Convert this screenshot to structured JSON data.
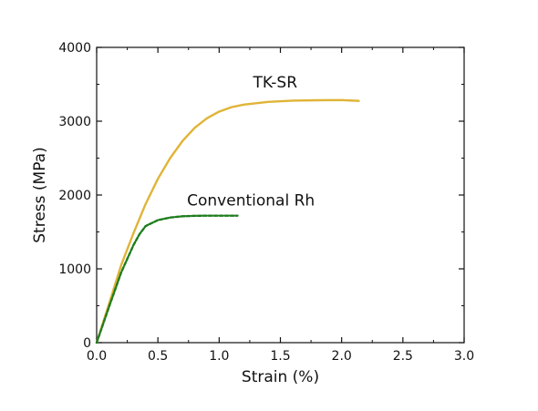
{
  "chart_data": {
    "type": "line",
    "xlabel": "Strain (%)",
    "ylabel": "Stress (MPa)",
    "xlim": [
      0,
      3.0
    ],
    "ylim": [
      0,
      4000
    ],
    "x_ticks": [
      0.0,
      0.5,
      1.0,
      1.5,
      2.0,
      2.5,
      3.0
    ],
    "x_tick_labels": [
      "0.0",
      "0.5",
      "1.0",
      "1.5",
      "2.0",
      "2.5",
      "3.0"
    ],
    "y_ticks": [
      0,
      1000,
      2000,
      3000,
      4000
    ],
    "y_tick_labels": [
      "0",
      "1000",
      "2000",
      "3000",
      "4000"
    ],
    "grid": false,
    "series": [
      {
        "name": "TK-SR",
        "color": "#e0b437",
        "style": "solid",
        "x": [
          0.0,
          0.1,
          0.2,
          0.3,
          0.4,
          0.5,
          0.6,
          0.7,
          0.8,
          0.9,
          1.0,
          1.1,
          1.2,
          1.4,
          1.6,
          1.8,
          2.0,
          2.14
        ],
        "y": [
          0,
          520,
          1050,
          1480,
          1880,
          2220,
          2500,
          2730,
          2910,
          3040,
          3130,
          3190,
          3225,
          3262,
          3278,
          3284,
          3286,
          3275
        ]
      },
      {
        "name": "Conventional Rh",
        "color": "#1e7d1e",
        "style": "dashed",
        "x": [
          0.0,
          0.1,
          0.2,
          0.3,
          0.35,
          0.4,
          0.5,
          0.6,
          0.7,
          0.8,
          0.9,
          1.0,
          1.15
        ],
        "y": [
          0,
          480,
          950,
          1320,
          1470,
          1580,
          1660,
          1695,
          1712,
          1718,
          1720,
          1720,
          1720
        ]
      }
    ]
  }
}
